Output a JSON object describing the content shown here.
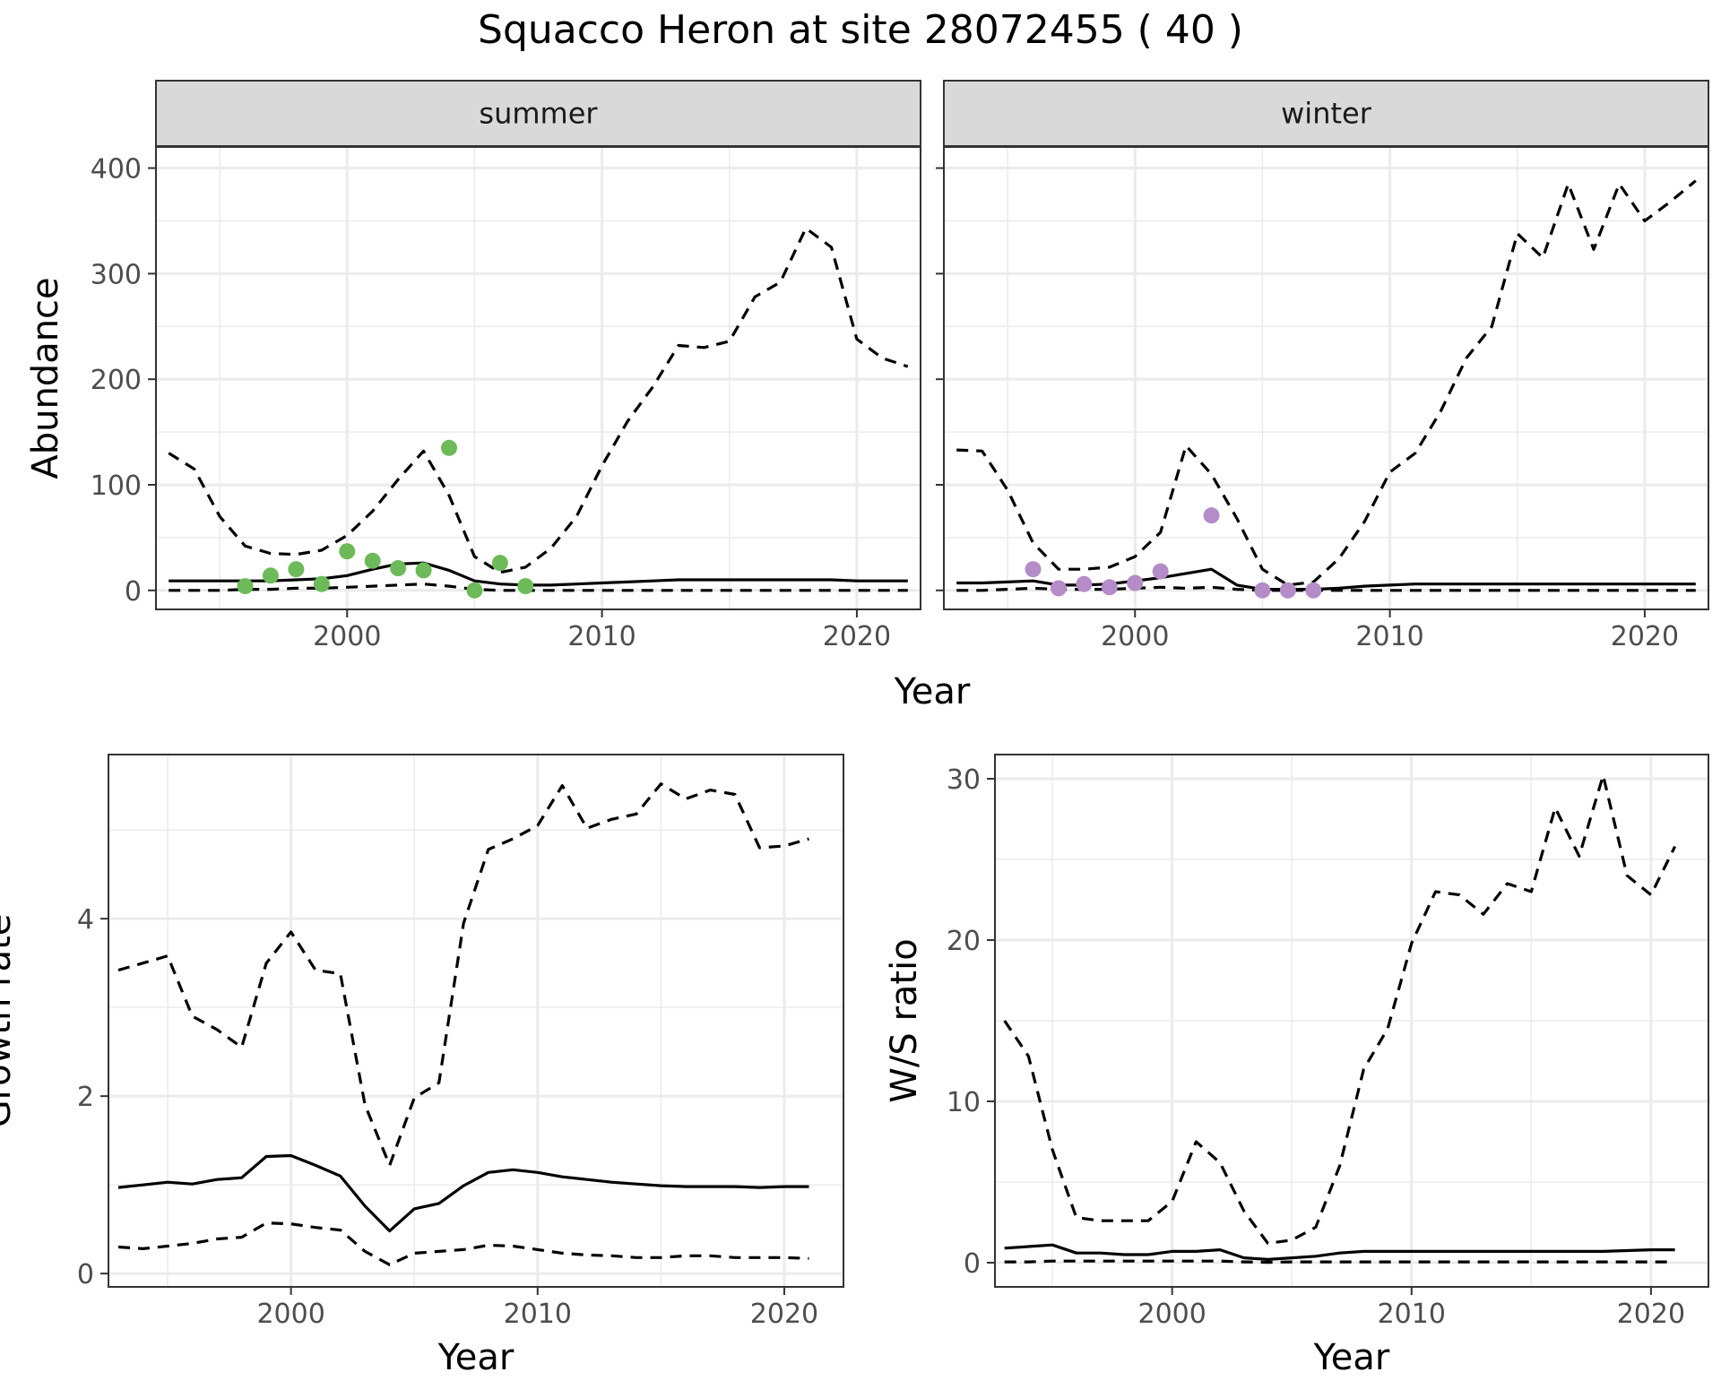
{
  "title": "Squacco Heron at site 28072455 ( 40 )",
  "colors": {
    "summer_points": "#6CBA59",
    "winter_points": "#B48CC8",
    "lines": "#000000",
    "strip": "#D9D9D9",
    "grid": "#EBEBEB"
  },
  "chart_data": [
    {
      "type": "line",
      "facet": "summer",
      "xlabel": "Year",
      "ylabel": "Abundance",
      "xlim": [
        1992.5,
        2022.5
      ],
      "ylim": [
        -18,
        420
      ],
      "xticks": [
        2000,
        2010,
        2020
      ],
      "yticks": [
        0,
        100,
        200,
        300,
        400
      ],
      "x": [
        1993,
        1994,
        1995,
        1996,
        1997,
        1998,
        1999,
        2000,
        2001,
        2002,
        2003,
        2004,
        2005,
        2006,
        2007,
        2008,
        2009,
        2010,
        2011,
        2012,
        2013,
        2014,
        2015,
        2016,
        2017,
        2018,
        2019,
        2020,
        2021,
        2022
      ],
      "series": [
        {
          "role": "estimate",
          "style": "solid",
          "values": [
            9,
            9,
            9,
            9,
            9,
            10,
            11,
            14,
            20,
            25,
            26,
            19,
            9,
            6,
            5,
            5,
            6,
            7,
            8,
            9,
            10,
            10,
            10,
            10,
            10,
            10,
            10,
            9,
            9,
            9
          ]
        },
        {
          "role": "upper",
          "style": "dashed",
          "values": [
            130,
            115,
            70,
            42,
            35,
            34,
            38,
            52,
            75,
            105,
            132,
            90,
            32,
            17,
            22,
            40,
            70,
            118,
            160,
            193,
            232,
            230,
            236,
            278,
            292,
            343,
            325,
            238,
            220,
            212
          ]
        },
        {
          "role": "lower",
          "style": "dashed",
          "values": [
            0,
            0,
            0,
            1,
            1,
            2,
            2,
            3,
            4,
            5,
            6,
            4,
            1,
            0,
            0,
            0,
            0,
            0,
            0,
            0,
            0,
            0,
            0,
            0,
            0,
            0,
            0,
            0,
            0,
            0
          ]
        }
      ],
      "points": {
        "x": [
          1996,
          1997,
          1998,
          1999,
          2000,
          2001,
          2002,
          2003,
          2004,
          2005,
          2006,
          2007
        ],
        "y": [
          4,
          14,
          20,
          6,
          37,
          28,
          21,
          19,
          135,
          0,
          26,
          4
        ]
      }
    },
    {
      "type": "line",
      "facet": "winter",
      "xlabel": "Year",
      "xlim": [
        1992.5,
        2022.5
      ],
      "ylim": [
        -18,
        420
      ],
      "xticks": [
        2000,
        2010,
        2020
      ],
      "x": [
        1993,
        1994,
        1995,
        1996,
        1997,
        1998,
        1999,
        2000,
        2001,
        2002,
        2003,
        2004,
        2005,
        2006,
        2007,
        2008,
        2009,
        2010,
        2011,
        2012,
        2013,
        2014,
        2015,
        2016,
        2017,
        2018,
        2019,
        2020,
        2021,
        2022
      ],
      "series": [
        {
          "role": "estimate",
          "style": "solid",
          "values": [
            7,
            7,
            8,
            9,
            5,
            5,
            6,
            9,
            12,
            16,
            20,
            5,
            1,
            1,
            1,
            2,
            4,
            5,
            6,
            6,
            6,
            6,
            6,
            6,
            6,
            6,
            6,
            6,
            6,
            6
          ]
        },
        {
          "role": "upper",
          "style": "dashed",
          "values": [
            133,
            132,
            95,
            45,
            20,
            20,
            22,
            32,
            55,
            137,
            110,
            68,
            20,
            5,
            8,
            30,
            65,
            112,
            130,
            170,
            220,
            250,
            338,
            315,
            385,
            323,
            385,
            350,
            368,
            388
          ]
        },
        {
          "role": "lower",
          "style": "dashed",
          "values": [
            0,
            0,
            1,
            2,
            1,
            1,
            1,
            2,
            3,
            2,
            3,
            1,
            0,
            0,
            0,
            0,
            0,
            0,
            0,
            0,
            0,
            0,
            0,
            0,
            0,
            0,
            0,
            0,
            0,
            0
          ]
        }
      ],
      "points": {
        "x": [
          1996,
          1997,
          1998,
          1999,
          2000,
          2001,
          2003,
          2005,
          2006,
          2007
        ],
        "y": [
          20,
          2,
          6,
          3,
          7,
          18,
          71,
          0,
          0,
          0
        ]
      }
    },
    {
      "type": "line",
      "xlabel": "Year",
      "ylabel": "Growth rate",
      "xlim": [
        1992.6,
        2022.4
      ],
      "ylim": [
        -0.15,
        5.85
      ],
      "xticks": [
        2000,
        2010,
        2020
      ],
      "yticks": [
        0,
        2,
        4
      ],
      "x": [
        1993,
        1994,
        1995,
        1996,
        1997,
        1998,
        1999,
        2000,
        2001,
        2002,
        2003,
        2004,
        2005,
        2006,
        2007,
        2008,
        2009,
        2010,
        2011,
        2012,
        2013,
        2014,
        2015,
        2016,
        2017,
        2018,
        2019,
        2020,
        2021
      ],
      "series": [
        {
          "role": "estimate",
          "style": "solid",
          "values": [
            0.97,
            1.0,
            1.03,
            1.01,
            1.06,
            1.08,
            1.32,
            1.33,
            1.22,
            1.1,
            0.76,
            0.48,
            0.73,
            0.79,
            0.99,
            1.14,
            1.17,
            1.14,
            1.09,
            1.06,
            1.03,
            1.01,
            0.99,
            0.98,
            0.98,
            0.98,
            0.97,
            0.98,
            0.98
          ]
        },
        {
          "role": "upper",
          "style": "dashed",
          "values": [
            3.42,
            3.5,
            3.58,
            2.9,
            2.75,
            2.55,
            3.5,
            3.85,
            3.42,
            3.38,
            1.9,
            1.22,
            1.98,
            2.15,
            3.95,
            4.78,
            4.9,
            5.05,
            5.5,
            5.02,
            5.12,
            5.18,
            5.52,
            5.35,
            5.45,
            5.4,
            4.8,
            4.82,
            4.9
          ]
        },
        {
          "role": "lower",
          "style": "dashed",
          "values": [
            0.3,
            0.28,
            0.31,
            0.34,
            0.39,
            0.41,
            0.57,
            0.56,
            0.52,
            0.49,
            0.25,
            0.1,
            0.23,
            0.25,
            0.27,
            0.32,
            0.31,
            0.27,
            0.23,
            0.21,
            0.2,
            0.18,
            0.18,
            0.2,
            0.2,
            0.18,
            0.18,
            0.18,
            0.17
          ]
        }
      ]
    },
    {
      "type": "line",
      "xlabel": "Year",
      "ylabel": "W/S ratio",
      "xlim": [
        1992.6,
        2022.4
      ],
      "ylim": [
        -1.5,
        31.5
      ],
      "xticks": [
        2000,
        2010,
        2020
      ],
      "yticks": [
        0,
        10,
        20,
        30
      ],
      "x": [
        1993,
        1994,
        1995,
        1996,
        1997,
        1998,
        1999,
        2000,
        2001,
        2002,
        2003,
        2004,
        2005,
        2006,
        2007,
        2008,
        2009,
        2010,
        2011,
        2012,
        2013,
        2014,
        2015,
        2016,
        2017,
        2018,
        2019,
        2020,
        2021
      ],
      "series": [
        {
          "role": "estimate",
          "style": "solid",
          "values": [
            0.9,
            1.0,
            1.1,
            0.6,
            0.6,
            0.5,
            0.5,
            0.7,
            0.7,
            0.8,
            0.3,
            0.2,
            0.3,
            0.4,
            0.6,
            0.7,
            0.7,
            0.7,
            0.7,
            0.7,
            0.7,
            0.7,
            0.7,
            0.7,
            0.7,
            0.7,
            0.75,
            0.8,
            0.8
          ]
        },
        {
          "role": "upper",
          "style": "dashed",
          "values": [
            15.0,
            12.8,
            7.0,
            2.8,
            2.6,
            2.6,
            2.6,
            3.8,
            7.5,
            6.2,
            3.2,
            1.2,
            1.4,
            2.2,
            6.0,
            12.0,
            14.5,
            19.8,
            23.0,
            22.8,
            21.6,
            23.5,
            23.0,
            28.2,
            25.2,
            30.2,
            24.0,
            22.8,
            25.8
          ]
        },
        {
          "role": "lower",
          "style": "dashed",
          "values": [
            0.05,
            0.05,
            0.1,
            0.1,
            0.1,
            0.1,
            0.1,
            0.1,
            0.1,
            0.1,
            0.05,
            0.02,
            0.05,
            0.05,
            0.05,
            0.05,
            0.05,
            0.05,
            0.05,
            0.05,
            0.05,
            0.05,
            0.05,
            0.05,
            0.05,
            0.05,
            0.05,
            0.05,
            0.05
          ]
        }
      ]
    }
  ]
}
